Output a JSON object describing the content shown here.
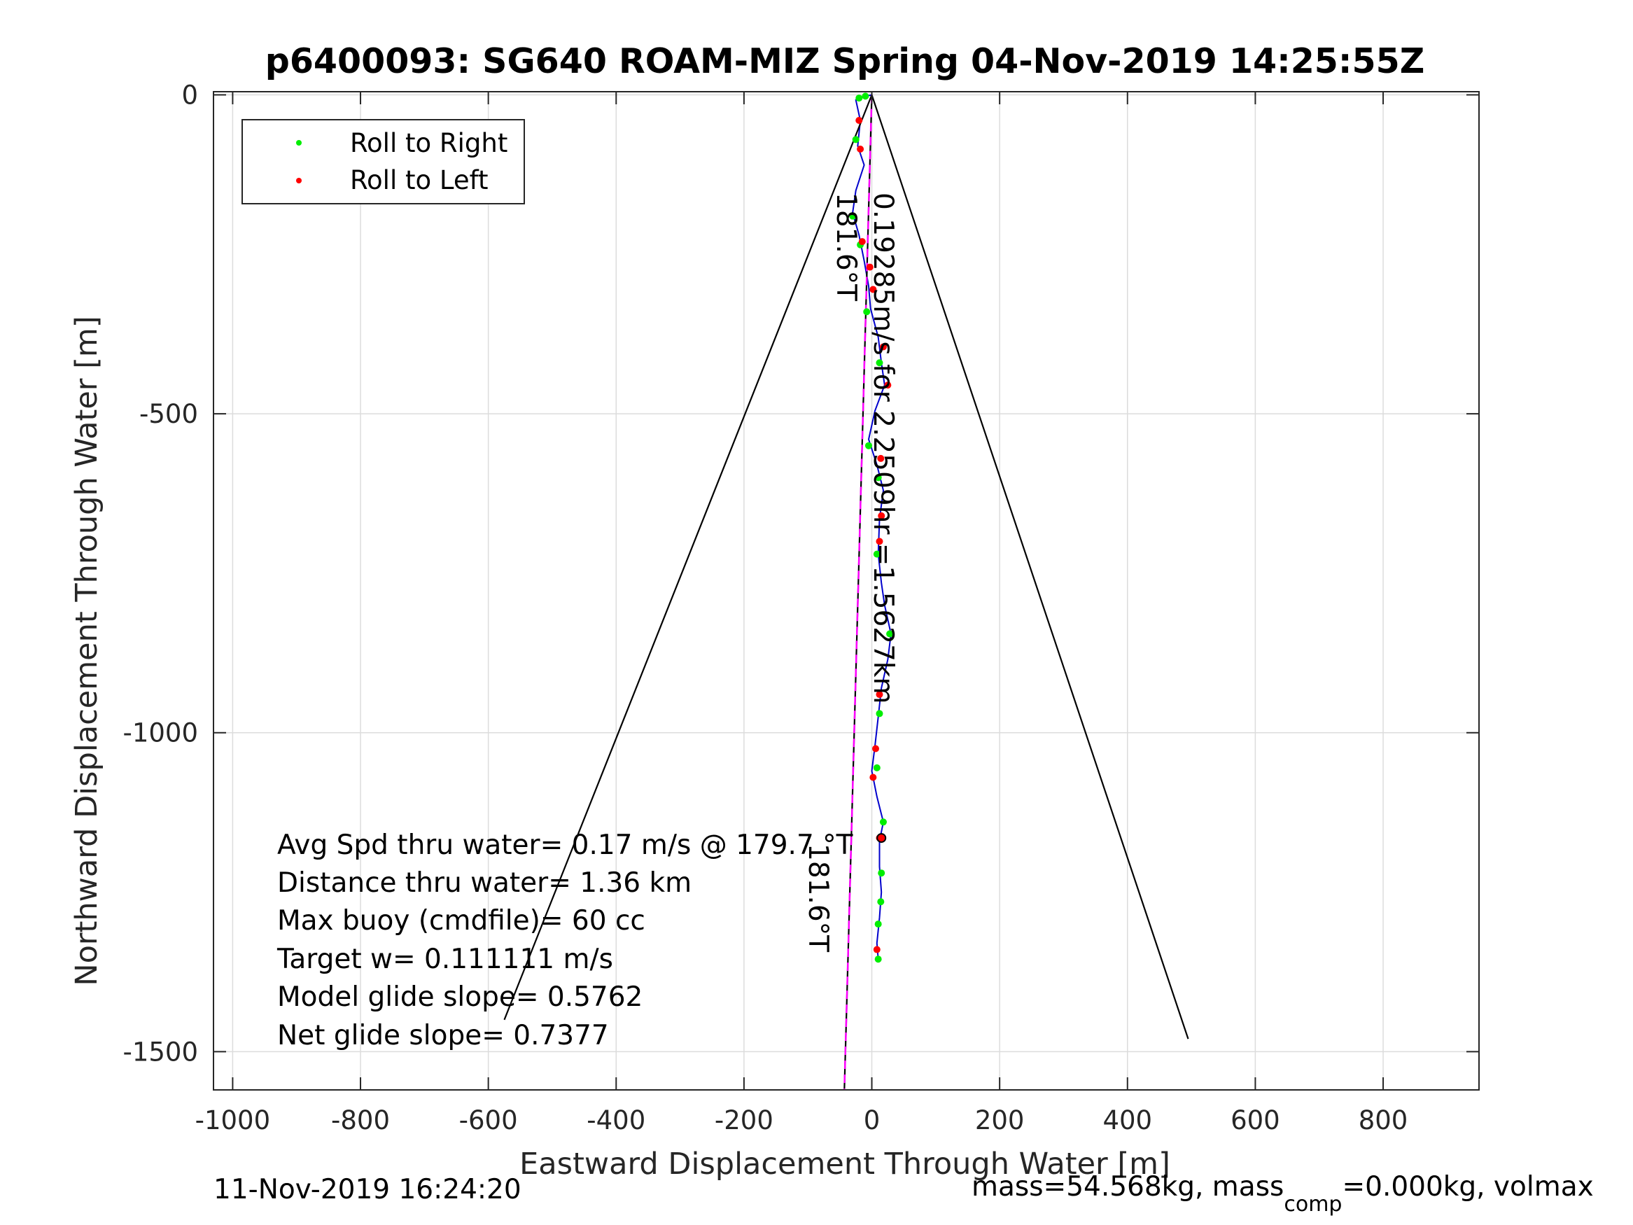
{
  "chart_data": {
    "type": "line",
    "title": "p6400093: SG640 ROAM-MIZ Spring 04-Nov-2019 14:25:55Z",
    "xlabel": "Eastward Displacement Through Water [m]",
    "ylabel": "Northward Displacement Through Water [m]",
    "xlim": [
      -1030,
      950
    ],
    "ylim": [
      -1560,
      5
    ],
    "x_ticks": [
      -1000,
      -800,
      -600,
      -400,
      -200,
      0,
      200,
      400,
      600,
      800
    ],
    "y_ticks": [
      0,
      -500,
      -1000,
      -1500
    ],
    "x_tick_labels": [
      "-1000",
      "-800",
      "-600",
      "-400",
      "-200",
      "0",
      "200",
      "400",
      "600",
      "800"
    ],
    "y_tick_labels": [
      "0",
      "-500",
      "-1000",
      "-1500"
    ],
    "grid": true,
    "legend": {
      "position": "top-left",
      "entries": [
        {
          "label": "Roll to Right",
          "color": "#00ee00"
        },
        {
          "label": "Roll to Left",
          "color": "#ff0000"
        }
      ]
    },
    "series": [
      {
        "name": "track",
        "color": "#0000cc",
        "points": [
          [
            0,
            0
          ],
          [
            -15,
            -3
          ],
          [
            -25,
            -8
          ],
          [
            -18,
            -40
          ],
          [
            -22,
            -80
          ],
          [
            -12,
            -110
          ],
          [
            -25,
            -150
          ],
          [
            -30,
            -185
          ],
          [
            -20,
            -220
          ],
          [
            -12,
            -260
          ],
          [
            -5,
            -300
          ],
          [
            -2,
            -335
          ],
          [
            10,
            -380
          ],
          [
            15,
            -420
          ],
          [
            20,
            -455
          ],
          [
            5,
            -495
          ],
          [
            -5,
            -540
          ],
          [
            8,
            -580
          ],
          [
            18,
            -620
          ],
          [
            12,
            -665
          ],
          [
            10,
            -720
          ],
          [
            15,
            -765
          ],
          [
            20,
            -800
          ],
          [
            30,
            -845
          ],
          [
            25,
            -885
          ],
          [
            15,
            -930
          ],
          [
            10,
            -975
          ],
          [
            5,
            -1020
          ],
          [
            0,
            -1060
          ],
          [
            8,
            -1100
          ],
          [
            18,
            -1140
          ],
          [
            12,
            -1170
          ],
          [
            12,
            -1210
          ],
          [
            15,
            -1250
          ],
          [
            12,
            -1290
          ],
          [
            8,
            -1330
          ],
          [
            10,
            -1355
          ]
        ]
      },
      {
        "name": "roll_right",
        "color": "#00ee00",
        "points": [
          [
            -20,
            -5
          ],
          [
            -10,
            -2
          ],
          [
            -25,
            -70
          ],
          [
            -30,
            -190
          ],
          [
            -18,
            -235
          ],
          [
            -8,
            -340
          ],
          [
            12,
            -420
          ],
          [
            -5,
            -550
          ],
          [
            10,
            -600
          ],
          [
            8,
            -720
          ],
          [
            28,
            -845
          ],
          [
            12,
            -970
          ],
          [
            8,
            -1055
          ],
          [
            18,
            -1140
          ],
          [
            15,
            -1220
          ],
          [
            14,
            -1265
          ],
          [
            10,
            -1300
          ],
          [
            10,
            -1355
          ]
        ]
      },
      {
        "name": "roll_left",
        "color": "#ff0000",
        "points": [
          [
            -20,
            -40
          ],
          [
            -18,
            -85
          ],
          [
            -15,
            -230
          ],
          [
            -3,
            -270
          ],
          [
            2,
            -305
          ],
          [
            18,
            -395
          ],
          [
            25,
            -455
          ],
          [
            14,
            -570
          ],
          [
            15,
            -660
          ],
          [
            12,
            -700
          ],
          [
            12,
            -940
          ],
          [
            6,
            -1025
          ],
          [
            2,
            -1070
          ],
          [
            12,
            -1165
          ],
          [
            8,
            -1340
          ]
        ]
      },
      {
        "name": "heading_line_dark",
        "color": "#000000",
        "points": [
          [
            0,
            0
          ],
          [
            -43,
            -1560
          ]
        ]
      },
      {
        "name": "heading_line_magenta",
        "color": "#ff00ff",
        "points": [
          [
            0,
            0
          ],
          [
            -43,
            -1560
          ]
        ]
      },
      {
        "name": "cone_left",
        "color": "#000000",
        "points": [
          [
            0,
            0
          ],
          [
            -575,
            -1450
          ]
        ]
      },
      {
        "name": "cone_right",
        "color": "#000000",
        "points": [
          [
            0,
            0
          ],
          [
            495,
            -1480
          ]
        ]
      }
    ],
    "annotations": {
      "heading_top": "181.6°T",
      "heading_bottom": "181.6°T",
      "current_text": "0.19285m/s for 2.2509hr =1.5627km",
      "avg_speed": "Avg Spd thru water=  0.17 m/s @ 179.7  °T",
      "distance": "Distance thru water=  1.36 km",
      "max_buoy": "Max buoy (cmdfile)= 60 cc",
      "target_w": "Target w= 0.111111 m/s",
      "model_glide": "Model glide slope= 0.5762",
      "net_glide": "Net glide slope= 0.7377"
    },
    "end_marker": [
      15,
      -1165
    ]
  },
  "footer": {
    "timestamp": "11-Nov-2019 16:24:20",
    "mass_prefix": "mass=54.568kg, mass",
    "mass_sub": "comp",
    "mass_suffix": "=0.000kg, volmax"
  }
}
